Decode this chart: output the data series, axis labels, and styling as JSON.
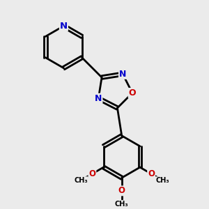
{
  "bg_color": "#ebebeb",
  "bond_color": "#000000",
  "nitrogen_color": "#0000cc",
  "oxygen_color": "#cc0000",
  "line_width": 2.0,
  "figsize": [
    3.0,
    3.0
  ],
  "dpi": 100,
  "xlim": [
    0,
    10
  ],
  "ylim": [
    0,
    10
  ]
}
